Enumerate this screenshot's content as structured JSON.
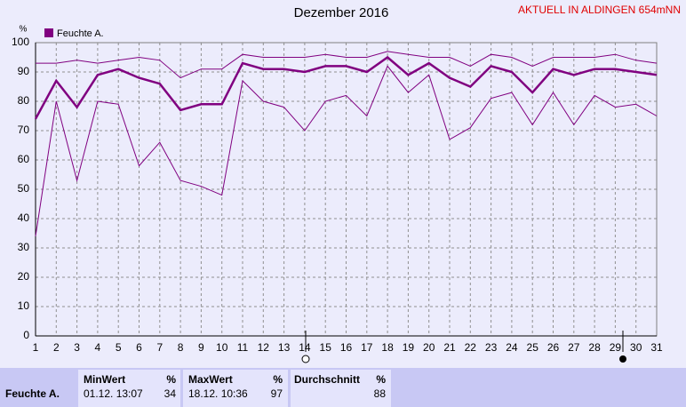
{
  "chart_data": {
    "type": "line",
    "title": "Dezember 2016",
    "subtitle": "AKTUELL IN ALDINGEN 654mNN",
    "y_label": "%",
    "legend": "Feuchte A.",
    "legend_color": "#800080",
    "x": [
      1,
      2,
      3,
      4,
      5,
      6,
      7,
      8,
      9,
      10,
      11,
      12,
      13,
      14,
      15,
      16,
      17,
      18,
      19,
      20,
      21,
      22,
      23,
      24,
      25,
      26,
      27,
      28,
      29,
      30,
      31
    ],
    "xlim": [
      1,
      31
    ],
    "xticks": [
      1,
      2,
      3,
      4,
      5,
      6,
      7,
      8,
      9,
      10,
      11,
      12,
      13,
      14,
      15,
      16,
      17,
      18,
      19,
      20,
      21,
      22,
      23,
      24,
      25,
      26,
      27,
      28,
      29,
      30,
      31
    ],
    "ylim": [
      0,
      100
    ],
    "yticks": [
      0,
      10,
      20,
      30,
      40,
      50,
      60,
      70,
      80,
      90,
      100
    ],
    "grid": true,
    "series": [
      {
        "color": "#800080",
        "width": 1,
        "values": [
          93,
          93,
          94,
          93,
          94,
          95,
          94,
          88,
          91,
          91,
          96,
          95,
          95,
          95,
          96,
          95,
          95,
          97,
          96,
          95,
          95,
          92,
          96,
          95,
          92,
          95,
          95,
          95,
          96,
          94,
          93
        ]
      },
      {
        "color": "#800080",
        "width": 2.5,
        "values": [
          74,
          87,
          78,
          89,
          91,
          88,
          86,
          77,
          79,
          79,
          93,
          91,
          91,
          90,
          92,
          92,
          90,
          95,
          89,
          93,
          88,
          85,
          92,
          90,
          83,
          91,
          89,
          91,
          91,
          90,
          89
        ]
      },
      {
        "color": "#800080",
        "width": 1,
        "values": [
          34,
          80,
          53,
          80,
          79,
          58,
          66,
          53,
          51,
          48,
          87,
          80,
          78,
          70,
          80,
          82,
          75,
          92,
          83,
          89,
          67,
          71,
          81,
          83,
          72,
          83,
          72,
          82,
          78,
          79,
          75
        ]
      }
    ]
  },
  "stats": {
    "row_label": "Feuchte A.",
    "min": {
      "header": "MinWert",
      "unit": "%",
      "time": "01.12. 13:07",
      "value": 34
    },
    "max": {
      "header": "MaxWert",
      "unit": "%",
      "time": "18.12. 10:36",
      "value": 97
    },
    "avg": {
      "header": "Durchschnitt",
      "unit": "%",
      "value": 88
    }
  }
}
